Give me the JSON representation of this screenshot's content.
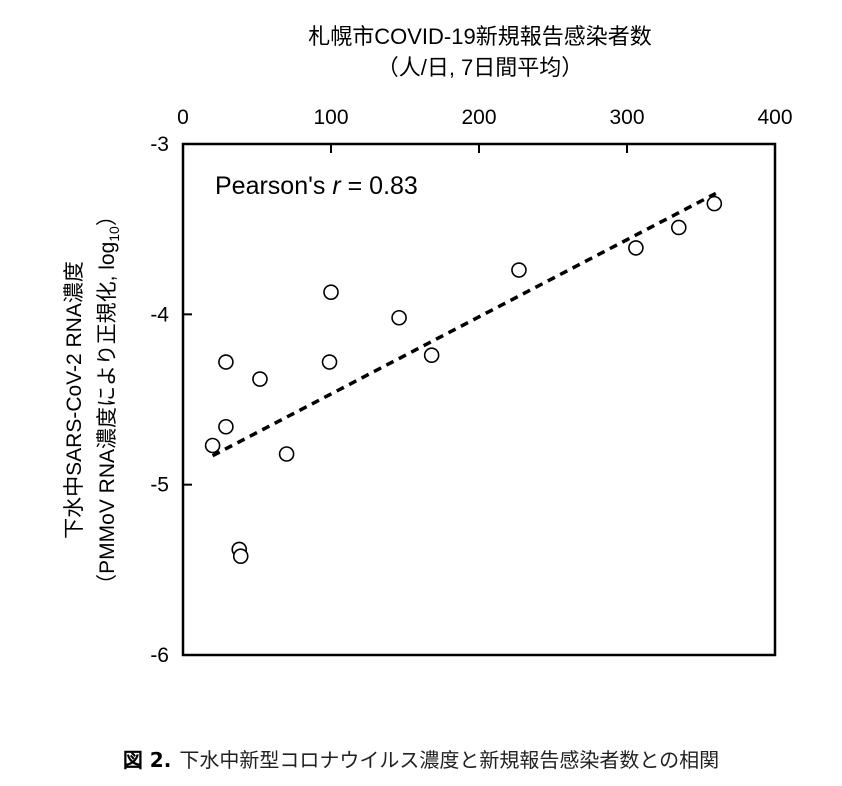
{
  "chart_data": {
    "type": "scatter",
    "title": "札幌市COVID-19新規報告感染者数",
    "subtitle": "（人/日, 7日間平均）",
    "xlabel": "札幌市COVID-19新規報告感染者数（人/日, 7日間平均）",
    "ylabel_line1": "下水中SARS-CoV-2 RNA濃度",
    "ylabel_line2": "（PMMoV RNA濃度により正規化, log",
    "ylabel_sub": "10",
    "ylabel_close": "）",
    "x_axis_position": "top",
    "xlim": [
      0,
      400
    ],
    "ylim": [
      -6,
      -3
    ],
    "x_ticks": [
      0,
      100,
      200,
      300,
      400
    ],
    "x_tick_labels": [
      "0",
      "100",
      "200",
      "300",
      "400"
    ],
    "y_ticks": [
      -3,
      -4,
      -5,
      -6
    ],
    "y_tick_labels": [
      "-3",
      "-4",
      "-5",
      "-6"
    ],
    "grid": false,
    "points": [
      {
        "x": 20,
        "y": -4.77
      },
      {
        "x": 29,
        "y": -4.28
      },
      {
        "x": 29,
        "y": -4.66
      },
      {
        "x": 38,
        "y": -5.38
      },
      {
        "x": 39,
        "y": -5.42
      },
      {
        "x": 52,
        "y": -4.38
      },
      {
        "x": 70,
        "y": -4.82
      },
      {
        "x": 99,
        "y": -4.28
      },
      {
        "x": 100,
        "y": -3.87
      },
      {
        "x": 146,
        "y": -4.02
      },
      {
        "x": 168,
        "y": -4.24
      },
      {
        "x": 227,
        "y": -3.74
      },
      {
        "x": 306,
        "y": -3.61
      },
      {
        "x": 335,
        "y": -3.49
      },
      {
        "x": 359,
        "y": -3.35
      }
    ],
    "trendline": {
      "style": "dashed",
      "x": [
        20,
        360
      ],
      "y": [
        -4.83,
        -3.29
      ]
    },
    "annotation": {
      "prefix": "Pearson's ",
      "italic": "r",
      "suffix": " = 0.83"
    }
  },
  "caption": {
    "label": "図 2.",
    "text": "下水中新型コロナウイルス濃度と新規報告感染者数との相関"
  }
}
